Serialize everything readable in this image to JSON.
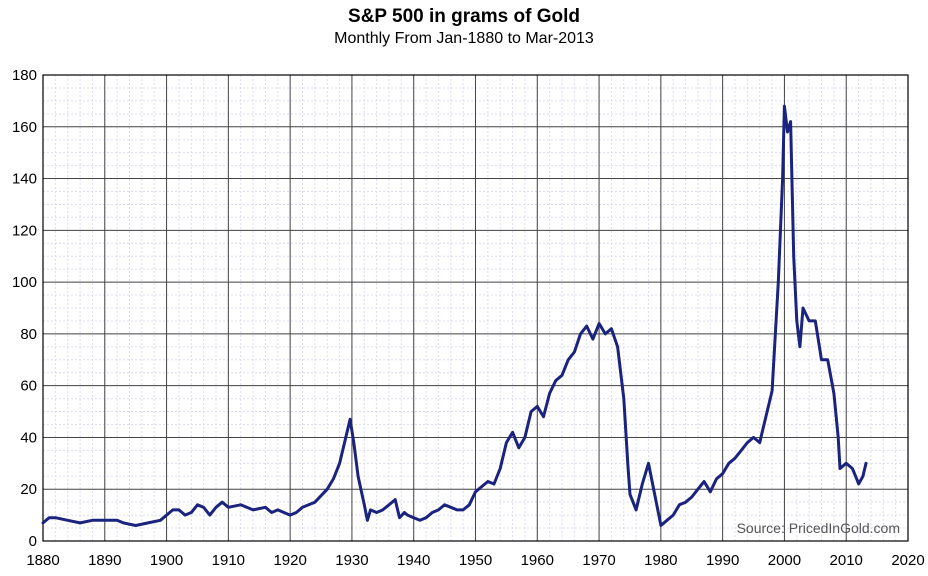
{
  "chart_data": {
    "type": "line",
    "title": "S&P 500 in grams of Gold",
    "subtitle": "Monthly From Jan-1880 to Mar-2013",
    "xlabel": "",
    "ylabel": "",
    "xlim": [
      1880,
      2020
    ],
    "ylim": [
      0,
      180
    ],
    "x_ticks": [
      1880,
      1890,
      1900,
      1910,
      1920,
      1930,
      1940,
      1950,
      1960,
      1970,
      1980,
      1990,
      2000,
      2010,
      2020
    ],
    "y_ticks": [
      0,
      20,
      40,
      60,
      80,
      100,
      120,
      140,
      160,
      180
    ],
    "grid": true,
    "line_color": "#1a237e",
    "source_note": "Source: PricedInGold.com",
    "series": [
      {
        "x": [
          1880,
          1881,
          1882,
          1884,
          1886,
          1888,
          1890,
          1892,
          1893,
          1895,
          1897,
          1899,
          1900,
          1901,
          1902,
          1903,
          1904,
          1905,
          1906,
          1907,
          1908,
          1909,
          1910,
          1912,
          1914,
          1916,
          1917,
          1918,
          1920,
          1921,
          1922,
          1924,
          1926,
          1927,
          1928,
          1929,
          1929.7,
          1930.3,
          1931,
          1932,
          1932.5,
          1933,
          1934,
          1935,
          1936,
          1937,
          1937.7,
          1938.5,
          1939,
          1940,
          1941,
          1942,
          1943,
          1944,
          1945,
          1946,
          1947,
          1948,
          1949,
          1950,
          1951,
          1952,
          1953,
          1954,
          1955,
          1956,
          1957,
          1958,
          1959,
          1960,
          1961,
          1962,
          1963,
          1964,
          1965,
          1966,
          1967,
          1968,
          1969,
          1970,
          1971,
          1972,
          1973,
          1974,
          1974.7,
          1975,
          1976,
          1977,
          1978,
          1979,
          1980,
          1981,
          1982,
          1983,
          1984,
          1985,
          1986,
          1987,
          1988,
          1989,
          1990,
          1991,
          1992,
          1993,
          1994,
          1995,
          1996,
          1997,
          1998,
          1999,
          1999.7,
          2000,
          2000.5,
          2001,
          2001.5,
          2002,
          2002.5,
          2003,
          2004,
          2005,
          2006,
          2007,
          2008,
          2008.7,
          2009,
          2010,
          2011,
          2011.7,
          2012,
          2012.7,
          2013.2
        ],
        "values": [
          7,
          9,
          9,
          8,
          7,
          8,
          8,
          8,
          7,
          6,
          7,
          8,
          10,
          12,
          12,
          10,
          11,
          14,
          13,
          10,
          13,
          15,
          13,
          14,
          12,
          13,
          11,
          12,
          10,
          11,
          13,
          15,
          20,
          24,
          30,
          40,
          47,
          38,
          25,
          14,
          8,
          12,
          11,
          12,
          14,
          16,
          9,
          11,
          10,
          9,
          8,
          9,
          11,
          12,
          14,
          13,
          12,
          12,
          14,
          19,
          21,
          23,
          22,
          28,
          38,
          42,
          36,
          40,
          50,
          52,
          48,
          57,
          62,
          64,
          70,
          73,
          80,
          83,
          78,
          84,
          80,
          82,
          75,
          55,
          28,
          18,
          12,
          22,
          30,
          18,
          6,
          8,
          10,
          14,
          15,
          17,
          20,
          23,
          19,
          24,
          26,
          30,
          32,
          35,
          38,
          40,
          38,
          48,
          58,
          100,
          140,
          168,
          158,
          162,
          110,
          85,
          75,
          90,
          85,
          85,
          70,
          70,
          57,
          40,
          28,
          30,
          28,
          24,
          22,
          25,
          30
        ]
      }
    ]
  }
}
